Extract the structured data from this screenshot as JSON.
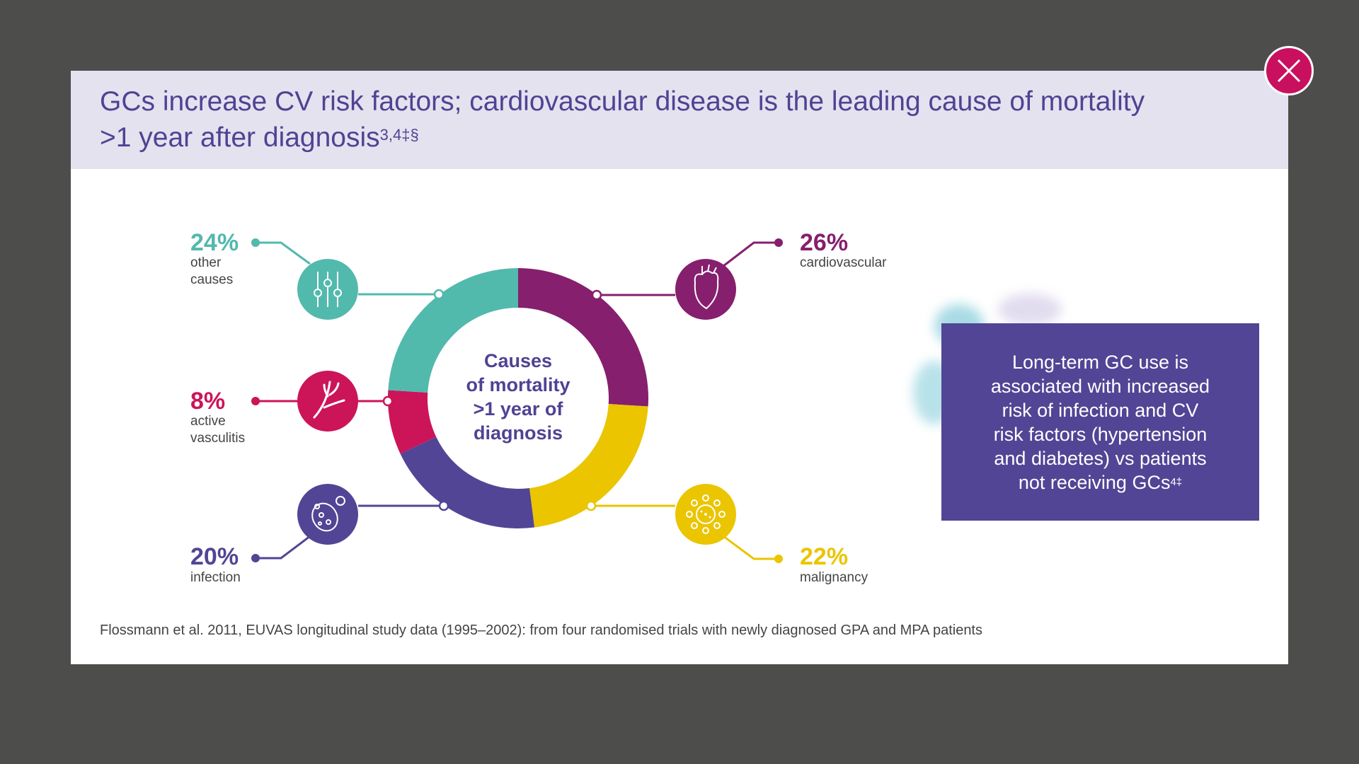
{
  "title": {
    "text": "GCs increase CV risk factors; cardiovascular disease is the leading cause of mortality >1 year after diagnosis",
    "superscript": "3,4‡§"
  },
  "close_button": {
    "icon": "close-icon"
  },
  "chart_data": {
    "type": "pie",
    "title": "Causes of mortality >1 year of diagnosis",
    "unit": "%",
    "slices": [
      {
        "label": "cardiovascular",
        "value": 26,
        "value_label": "26%",
        "color": "#861f6d",
        "icon": "heart-icon"
      },
      {
        "label": "malignancy",
        "value": 22,
        "value_label": "22%",
        "color": "#eac500",
        "icon": "cancer-cell-icon"
      },
      {
        "label": "infection",
        "value": 20,
        "value_label": "20%",
        "color": "#524595",
        "icon": "bacteria-icon"
      },
      {
        "label": "active vasculitis",
        "value": 8,
        "value_label": "8%",
        "color": "#cc1459",
        "icon": "blood-vessel-icon"
      },
      {
        "label": "other causes",
        "value": 24,
        "value_label": "24%",
        "color": "#52b9ad",
        "icon": "sliders-icon"
      }
    ]
  },
  "center_label": [
    "Causes",
    "of mortality",
    ">1 year of",
    "diagnosis"
  ],
  "labels": {
    "other": [
      "other",
      "causes"
    ],
    "vasculitis": [
      "active",
      "vasculitis"
    ],
    "infection": "infection",
    "cardio": "cardiovascular",
    "malignancy": "malignancy"
  },
  "callout": {
    "lines": [
      "Long-term GC use is",
      "associated with increased",
      "risk of infection and CV",
      "risk factors (hypertension",
      "and diabetes) vs patients",
      "not receiving GCs"
    ],
    "superscript": "4‡"
  },
  "footnote": "Flossmann et al. 2011, EUVAS longitudinal study data (1995–2002): from four randomised trials with newly diagnosed GPA and MPA patients"
}
